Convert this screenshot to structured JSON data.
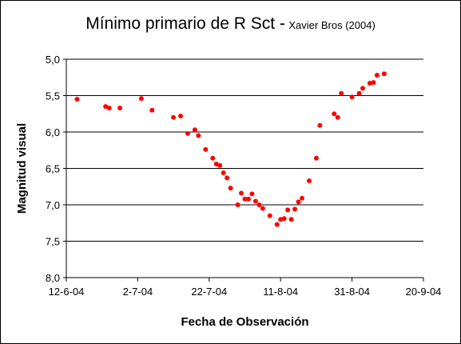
{
  "chart_data": {
    "type": "scatter",
    "title": "Mínimo primario de R Sct -",
    "subtitle": "Xavier Bros (2004)",
    "xlabel": "Fecha de Observación",
    "ylabel": "Magnitud visual",
    "xlim": [
      "2004-06-12",
      "2004-09-20"
    ],
    "ylim": [
      5.0,
      8.0
    ],
    "y_inverted": true,
    "grid": true,
    "x_tick_labels": [
      "12-6-04",
      "2-7-04",
      "22-7-04",
      "11-8-04",
      "31-8-04",
      "20-9-04"
    ],
    "y_tick_labels": [
      "5,0",
      "5,5",
      "6,0",
      "6,5",
      "7,0",
      "7,5",
      "8,0"
    ],
    "colors": {
      "points": "#ff0000",
      "axis": "#000000",
      "grid": "#000000"
    },
    "x": [
      "2004-06-15",
      "2004-06-23",
      "2004-06-24",
      "2004-06-27",
      "2004-07-03",
      "2004-07-06",
      "2004-07-12",
      "2004-07-14",
      "2004-07-16",
      "2004-07-18",
      "2004-07-19",
      "2004-07-21",
      "2004-07-23",
      "2004-07-24",
      "2004-07-25",
      "2004-07-26",
      "2004-07-27",
      "2004-07-28",
      "2004-07-30",
      "2004-07-31",
      "2004-08-01",
      "2004-08-02",
      "2004-08-03",
      "2004-08-04",
      "2004-08-05",
      "2004-08-06",
      "2004-08-08",
      "2004-08-10",
      "2004-08-11",
      "2004-08-12",
      "2004-08-13",
      "2004-08-14",
      "2004-08-15",
      "2004-08-16",
      "2004-08-17",
      "2004-08-19",
      "2004-08-21",
      "2004-08-22",
      "2004-08-26",
      "2004-08-27",
      "2004-08-28",
      "2004-08-31",
      "2004-09-02",
      "2004-09-03",
      "2004-09-05",
      "2004-09-06",
      "2004-09-07",
      "2004-09-09"
    ],
    "y": [
      5.55,
      5.65,
      5.67,
      5.67,
      5.54,
      5.7,
      5.8,
      5.78,
      6.02,
      5.97,
      6.05,
      6.24,
      6.36,
      6.44,
      6.46,
      6.56,
      6.63,
      6.77,
      7.0,
      6.84,
      6.92,
      6.92,
      6.85,
      6.95,
      7.0,
      7.05,
      7.15,
      7.27,
      7.2,
      7.19,
      7.07,
      7.2,
      7.06,
      6.96,
      6.91,
      6.67,
      6.36,
      5.91,
      5.75,
      5.8,
      5.47,
      5.52,
      5.47,
      5.4,
      5.33,
      5.32,
      5.22,
      5.2
    ]
  }
}
